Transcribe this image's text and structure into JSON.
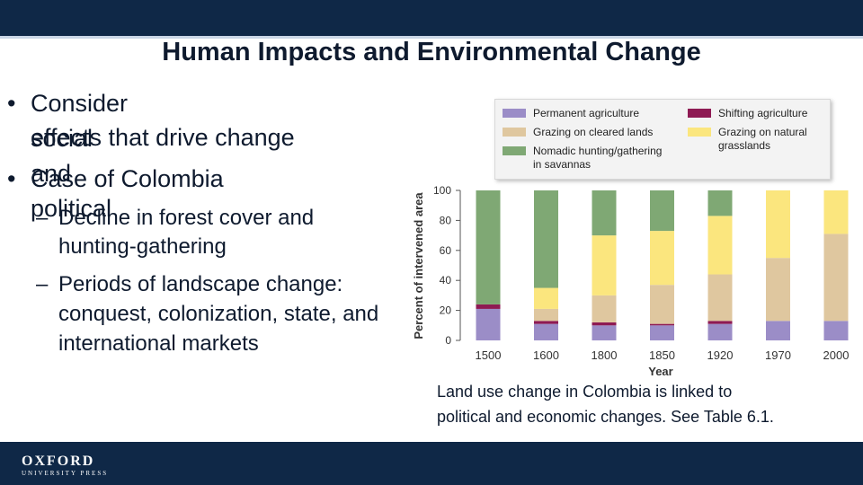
{
  "slide": {
    "title": "Human Impacts and Environmental Change",
    "bullets": [
      {
        "level": 1,
        "marker": "•",
        "lines": [
          "Consider social and political",
          "effects that drive change"
        ]
      },
      {
        "level": 1,
        "marker": "•",
        "lines": [
          "Case of Colombia"
        ]
      },
      {
        "level": 2,
        "marker": "–",
        "lines": [
          "Decline in forest cover and",
          "hunting-gathering"
        ]
      },
      {
        "level": 2,
        "marker": "–",
        "lines": [
          "Periods of landscape change:",
          "conquest, colonization, state, and",
          "international markets"
        ]
      }
    ],
    "caption": [
      "Land use change in Colombia is linked to",
      "political and economic changes. See Table 6.1."
    ],
    "logo": {
      "name": "OXFORD",
      "subtitle": "UNIVERSITY PRESS"
    }
  },
  "colors": {
    "header": "#0f2847",
    "permanent_agriculture": "#9b8dc7",
    "shifting_agriculture": "#8e1a53",
    "grazing_cleared": "#dfc79f",
    "grazing_natural": "#fbe67e",
    "nomadic": "#7fa874"
  },
  "chart_data": {
    "type": "bar",
    "stacked": true,
    "xlabel": "Year",
    "ylabel": "Percent of intervened area",
    "ylim": [
      0,
      100
    ],
    "yticks": [
      0,
      20,
      40,
      60,
      80,
      100
    ],
    "categories": [
      "1500",
      "1600",
      "1800",
      "1850",
      "1920",
      "1970",
      "2000"
    ],
    "series": [
      {
        "name": "Permanent agriculture",
        "color": "#9b8dc7",
        "values": [
          21,
          11,
          10,
          10,
          11,
          13,
          13
        ]
      },
      {
        "name": "Shifting agriculture",
        "color": "#8e1a53",
        "values": [
          3,
          2,
          2,
          1,
          2,
          0,
          0
        ]
      },
      {
        "name": "Grazing on cleared lands",
        "color": "#dfc79f",
        "values": [
          0,
          8,
          18,
          26,
          31,
          42,
          58
        ]
      },
      {
        "name": "Grazing on natural grasslands",
        "color": "#fbe67e",
        "values": [
          0,
          14,
          40,
          36,
          39,
          45,
          29
        ]
      },
      {
        "name": "Nomadic hunting/gathering in savannas",
        "color": "#7fa874",
        "values": [
          76,
          65,
          30,
          27,
          17,
          0,
          0
        ]
      }
    ],
    "legend": {
      "position": "top",
      "items": [
        {
          "lines": [
            "Permanent agriculture"
          ],
          "color": "#9b8dc7"
        },
        {
          "lines": [
            "Shifting agriculture"
          ],
          "color": "#8e1a53"
        },
        {
          "lines": [
            "Grazing on cleared lands"
          ],
          "color": "#dfc79f"
        },
        {
          "lines": [
            "Grazing on natural",
            "grasslands"
          ],
          "color": "#fbe67e"
        },
        {
          "lines": [
            "Nomadic hunting/gathering",
            "in savannas"
          ],
          "color": "#7fa874"
        }
      ]
    },
    "grid": false
  }
}
